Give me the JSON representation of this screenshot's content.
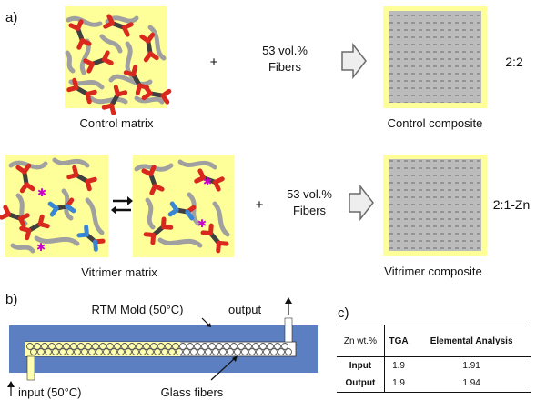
{
  "panel_a": {
    "label": "a)",
    "row1": {
      "matrix_label": "Control matrix",
      "plus": "+",
      "fibers_line1": "53 vol.%",
      "fibers_line2": "Fibers",
      "composite_label": "Control composite",
      "ratio": "2:2"
    },
    "row2": {
      "matrix_label": "Vitrimer matrix",
      "plus": "+",
      "fibers_line1": "53 vol.%",
      "fibers_line2": "Fibers",
      "composite_label": "Vitrimer composite",
      "ratio": "2:1-Zn"
    }
  },
  "panel_b": {
    "label": "b)",
    "mold_label": "RTM Mold (50°C)",
    "output_label": "output",
    "input_label": "input (50°C)",
    "fibers_label": "Glass fibers"
  },
  "panel_c": {
    "label": "c)",
    "headers": [
      "Zn wt.%",
      "TGA",
      "Elemental Analysis"
    ],
    "rows": [
      {
        "label": "Input",
        "tga": "1.9",
        "ea": "1.91"
      },
      {
        "label": "Output",
        "tga": "1.9",
        "ea": "1.94"
      }
    ]
  },
  "colors": {
    "matrix_bg": "#ffff99",
    "chain": "#a0a0a0",
    "crosslink_core": "#404040",
    "crosslink_end": "#d9281e",
    "vitrimer_end": "#3a86d6",
    "zinc_star": "#cc00cc",
    "mold": "#5b7fc0",
    "fiber_fill": "#ffffb0"
  }
}
